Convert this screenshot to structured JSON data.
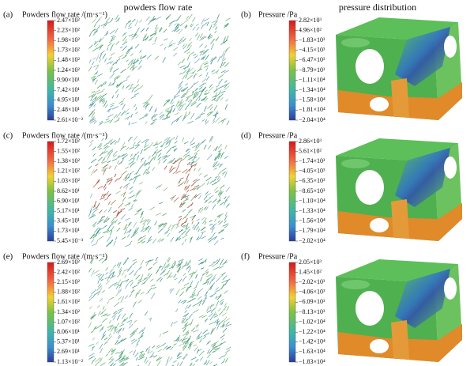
{
  "headers": {
    "left": "powders flow rate",
    "right": "pressure distribution"
  },
  "panels": [
    {
      "label": "(a)",
      "legend_title": "Powders flow rate /(m·s⁻¹)",
      "ticks": [
        "2.47×10²",
        "2.23×10²",
        "1.98×10²",
        "1.73×10²",
        "1.48×10²",
        "1.24×10²",
        "9.90×10¹",
        "7.42×10¹",
        "4.95×10¹",
        "2.48×10¹",
        "2.61×10⁻²"
      ]
    },
    {
      "label": "(b)",
      "legend_title": "Pressure /Pa",
      "ticks": [
        "2.82×10³",
        "4.96×10²",
        "−1.83×10³",
        "−4.15×10³",
        "−6.47×10³",
        "−8.79×10³",
        "−1.11×10⁴",
        "−1.34×10⁴",
        "−1.58×10⁴",
        "−1.81×10⁴",
        "−2.04×10⁴"
      ]
    },
    {
      "label": "(c)",
      "legend_title": "Powders flow rate /(m·s⁻¹)",
      "ticks": [
        "1.72×10²",
        "1.55×10²",
        "1.38×10²",
        "1.21×10²",
        "1.03×10²",
        "8.62×10¹",
        "6.90×10¹",
        "5.17×10¹",
        "3.45×10¹",
        "1.73×10¹",
        "5.45×10⁻³"
      ]
    },
    {
      "label": "(d)",
      "legend_title": "Pressure /Pa",
      "ticks": [
        "2.86×10³",
        "5.61×10²",
        "−1.74×10³",
        "−4.05×10³",
        "−6.35×10³",
        "−8.65×10³",
        "−1.10×10⁴",
        "−1.33×10⁴",
        "−1.56×10⁴",
        "−1.79×10⁴",
        "−2.02×10⁴"
      ]
    },
    {
      "label": "(e)",
      "legend_title": "Powders flow rate /(m·s⁻¹)",
      "ticks": [
        "2.69×10²",
        "2.42×10²",
        "2.15×10²",
        "1.88×10²",
        "1.61×10²",
        "1.34×10²",
        "1.07×10²",
        "8.06×10¹",
        "5.37×10¹",
        "2.69×10¹",
        "1.13×10⁻²"
      ]
    },
    {
      "label": "(f)",
      "legend_title": "Pressure /Pa",
      "ticks": [
        "2.05×10³",
        "1.45×10²",
        "−2.02×10³",
        "−4.06×10³",
        "−6.09×10³",
        "−8.13×10³",
        "−1.02×10⁴",
        "−1.22×10⁴",
        "−1.42×10⁴",
        "−1.63×10⁴",
        "−1.83×10⁴"
      ]
    }
  ]
}
